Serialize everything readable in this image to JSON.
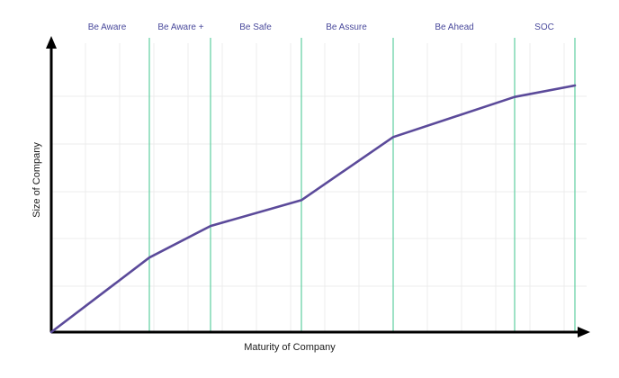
{
  "chart_data": {
    "type": "line",
    "xlabel": "Maturity of Company",
    "ylabel": "Size of Company",
    "phases": [
      "Be Aware",
      "Be Aware +",
      "Be Safe",
      "Be Assure",
      "Be Ahead",
      "SOC"
    ],
    "phase_boundaries": [
      0,
      1,
      2,
      3,
      4,
      5,
      6
    ],
    "series": [
      {
        "x": [
          0,
          1,
          2,
          3,
          4,
          5,
          6
        ],
        "values": [
          0,
          26,
          37,
          46,
          68,
          82,
          86
        ]
      }
    ],
    "xlim": [
      0,
      6
    ],
    "ylim": [
      0,
      100
    ],
    "grid": true,
    "legend": "none"
  },
  "colors": {
    "line": "#5b4a9a",
    "phase_divider": "#5fcfa0",
    "grid": "#ececec",
    "axis": "#000000",
    "phase_label": "#4a4a9c"
  }
}
